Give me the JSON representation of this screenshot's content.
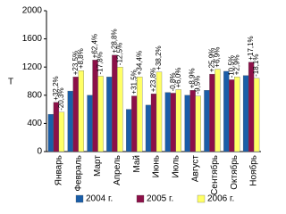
{
  "chart_data": {
    "type": "bar",
    "y_label": "Т",
    "categories": [
      "Январь",
      "Февраль",
      "Март",
      "Апрель",
      "Май",
      "Июнь",
      "Июль",
      "Август",
      "Сентябрь",
      "Октябрь",
      "Ноябрь"
    ],
    "series": [
      {
        "name": "2004 г.",
        "color": "#1a5ea8",
        "values": [
          530,
          860,
          800,
          1060,
          600,
          660,
          840,
          800,
          870,
          1140,
          1080
        ]
      },
      {
        "name": "2005 г.",
        "color": "#8c1048",
        "values": [
          700,
          1060,
          1300,
          1370,
          790,
          820,
          830,
          870,
          1100,
          1020,
          1270
        ]
      },
      {
        "name": "2006 г.",
        "color": "#ffff66",
        "values": [
          560,
          1150,
          1070,
          1200,
          1060,
          1130,
          880,
          790,
          1170,
          1060,
          1040
        ]
      }
    ],
    "annotations": [
      [
        "+32,2%",
        "-20,3%"
      ],
      [
        "+23,5%",
        "+8,8%"
      ],
      [
        "+62,4%",
        "-17,8%"
      ],
      [
        "+28,8%",
        "-12,5%"
      ],
      [
        "+31,5%",
        "+34,4%"
      ],
      [
        "+23,8%",
        "+38,2%"
      ],
      [
        "-0,8%",
        "+6,0%"
      ],
      [
        "+8,9%",
        "-9,5%"
      ],
      [
        "+25,9%",
        "+6,9%"
      ],
      [
        "-10,5%",
        "+2,9%"
      ],
      [
        "+17,1%",
        "-18,1%"
      ]
    ],
    "ylim": [
      0,
      2000
    ],
    "yticks": [
      0,
      400,
      800,
      1200,
      1600,
      2000
    ],
    "grid": false,
    "legend": "bottom"
  }
}
